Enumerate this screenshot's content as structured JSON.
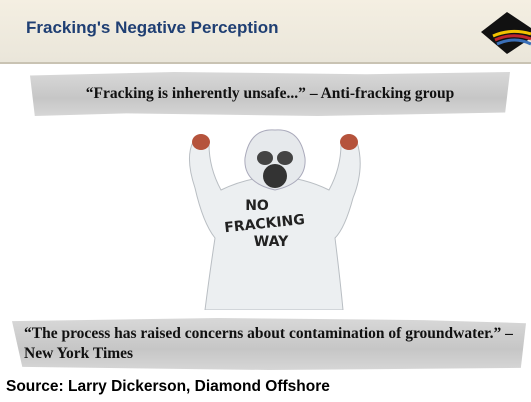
{
  "header": {
    "title": "Fracking's Negative Perception"
  },
  "quotes": [
    {
      "text": "“Fracking is inherently unsafe...”",
      "attribution": "– Anti-fracking group"
    },
    {
      "text": "“The process has raised concerns about contamination of groundwater.”",
      "attribution": "– New York Times"
    }
  ],
  "image": {
    "sign": [
      "NO",
      "FRACKING",
      "WAY"
    ]
  },
  "source": "Source:  Larry Dickerson, Diamond Offshore"
}
